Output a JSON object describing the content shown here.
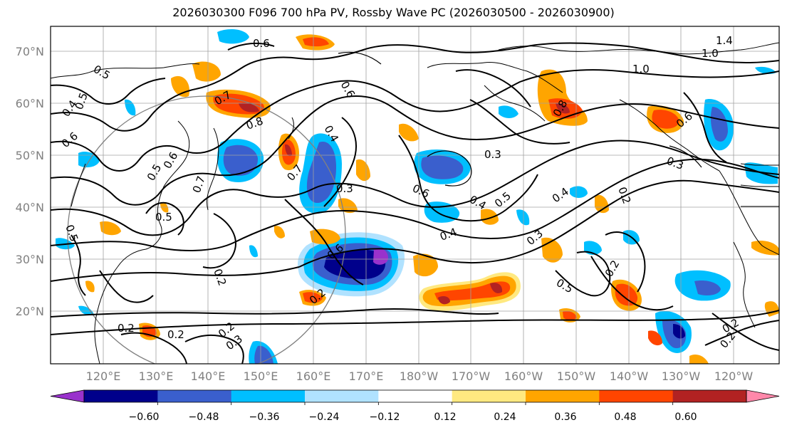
{
  "title": "2026030300 F096 700 hPa PV, Rossby Wave PC (2026030500 - 2026030900)",
  "map": {
    "lat_labels": [
      "70°N",
      "60°N",
      "50°N",
      "40°N",
      "30°N",
      "20°N"
    ],
    "lon_labels": [
      "120°E",
      "130°E",
      "140°E",
      "150°E",
      "160°E",
      "170°E",
      "180°W",
      "170°W",
      "160°W",
      "150°W",
      "140°W",
      "130°W",
      "120°W"
    ],
    "contour_labels": [
      "0.6",
      "0.5",
      "0.5",
      "0.4",
      "0.6",
      "0.7",
      "0.8",
      "0.6",
      "0.4",
      "0.7",
      "0.5",
      "0.6",
      "0.7",
      "0.3",
      "0.6",
      "0.4",
      "0.5",
      "0.4",
      "0.3",
      "0.4",
      "0.3",
      "0.5",
      "0.2",
      "0.2",
      "0.2",
      "0.2",
      "0.3",
      "0.2",
      "0.5",
      "0.5",
      "0.2",
      "1.0",
      "1.0",
      "1.4",
      "0.8",
      "0.6",
      "0.3",
      "0.2",
      "0.2",
      "0.2",
      "0.6"
    ]
  },
  "colorbar": {
    "tick_labels": [
      "−0.60",
      "−0.48",
      "−0.36",
      "−0.24",
      "−0.12",
      "0.12",
      "0.24",
      "0.36",
      "0.48",
      "0.60"
    ],
    "colors": [
      "#9932cc",
      "#00008b",
      "#3a5fcd",
      "#00bfff",
      "#b0e2ff",
      "#ffffff",
      "#ffe980",
      "#ffa500",
      "#ff4500",
      "#b22222",
      "#ff88aa"
    ]
  }
}
